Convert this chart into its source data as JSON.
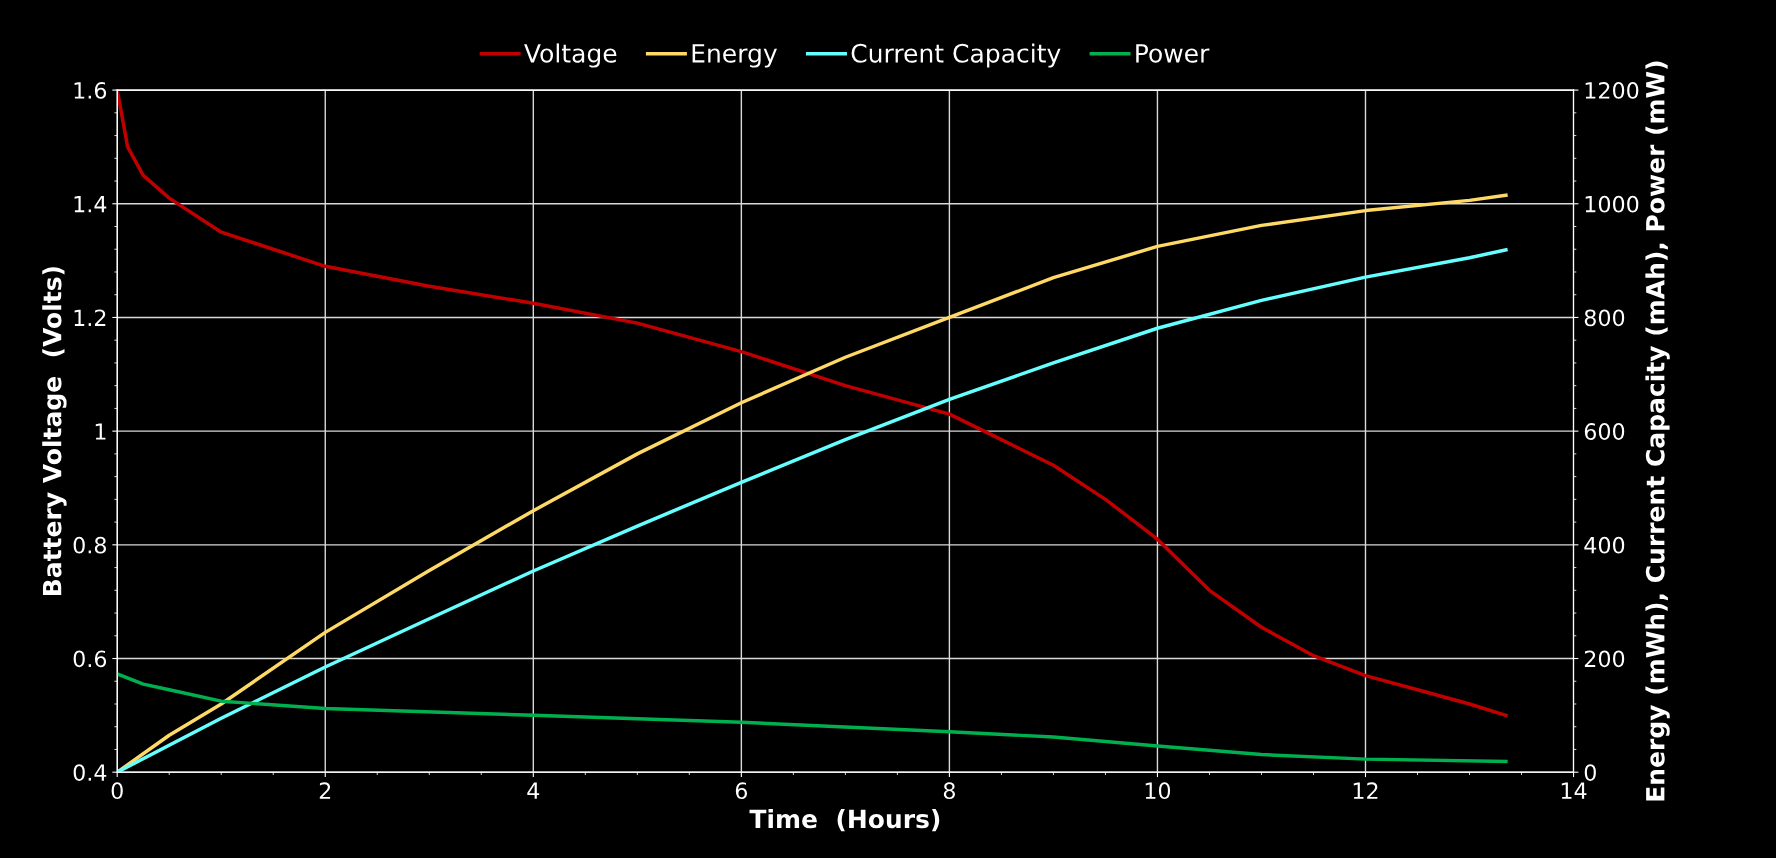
{
  "chart_data": {
    "type": "line",
    "xlabel": "Time  (Hours)",
    "ylabel": "Battery Voltage  (Volts)",
    "y2label": "Energy (mWh), Current Capacity (mAh), Power (mW)",
    "xlim": [
      0,
      14
    ],
    "xticks": [
      0,
      2,
      4,
      6,
      8,
      10,
      12,
      14
    ],
    "ylim": [
      0.4,
      1.6
    ],
    "yticks": [
      0.4,
      0.6,
      0.8,
      1,
      1.2,
      1.4,
      1.6
    ],
    "y2lim": [
      0,
      1200
    ],
    "y2ticks": [
      0,
      200,
      400,
      600,
      800,
      1000,
      1200
    ],
    "grid": true,
    "legend": "top",
    "marker": "none",
    "line_style": "solid",
    "series": [
      {
        "name": "Voltage",
        "color": "#c00000",
        "x": [
          0,
          0.1,
          0.25,
          0.5,
          1,
          1.5,
          2,
          3,
          4,
          5,
          6,
          7,
          8,
          8.5,
          9,
          9.5,
          10,
          10.5,
          11,
          11.5,
          12,
          12.5,
          13,
          13.35
        ],
        "values": [
          1.6,
          1.5,
          1.45,
          1.41,
          1.35,
          1.32,
          1.29,
          1.255,
          1.225,
          1.19,
          1.14,
          1.08,
          1.03,
          0.985,
          0.94,
          0.88,
          0.81,
          0.72,
          0.655,
          0.605,
          0.57,
          0.545,
          0.52,
          0.5
        ]
      },
      {
        "name": "Energy",
        "color": "#ffd966",
        "axis": "y2",
        "x": [
          0,
          0.5,
          1,
          2,
          3,
          4,
          5,
          6,
          7,
          8,
          9,
          10,
          11,
          12,
          13,
          13.35
        ],
        "values": [
          0,
          65,
          120,
          246,
          355,
          460,
          560,
          650,
          730,
          800,
          870,
          925,
          962,
          988,
          1006,
          1015
        ]
      },
      {
        "name": "Current Capacity",
        "color": "#66ffff",
        "axis": "y2",
        "x": [
          0,
          1,
          2,
          3,
          4,
          5,
          6,
          7,
          8,
          9,
          10,
          11,
          12,
          13,
          13.35
        ],
        "values": [
          0,
          95,
          185,
          270,
          354,
          433,
          510,
          585,
          656,
          720,
          781,
          830,
          871,
          905,
          919
        ]
      },
      {
        "name": "Power",
        "color": "#00b050",
        "axis": "y2",
        "x": [
          0,
          0.25,
          0.5,
          1,
          2,
          4,
          6,
          8,
          9,
          10,
          11,
          12,
          13.35
        ],
        "values": [
          173,
          155,
          145,
          125,
          112,
          100,
          88,
          71,
          62,
          46,
          31,
          23,
          19
        ]
      }
    ]
  }
}
